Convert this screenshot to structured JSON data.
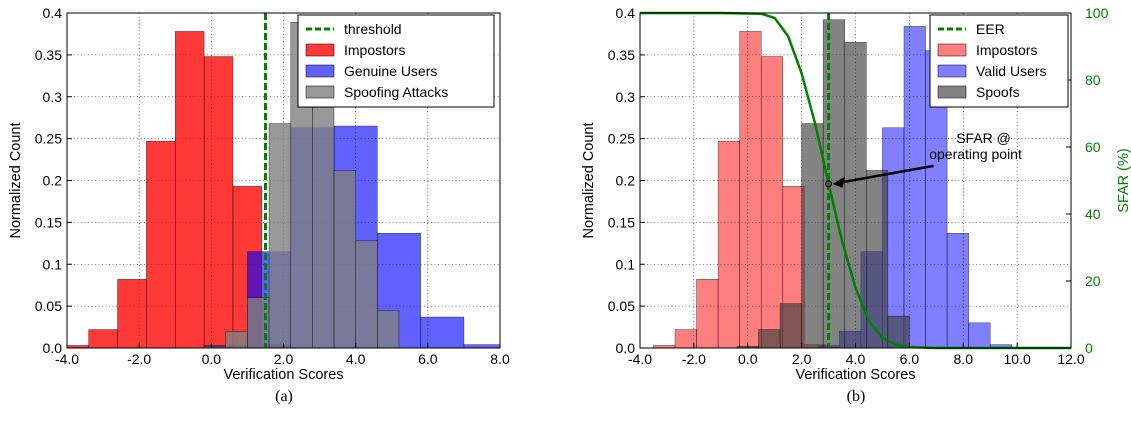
{
  "chart_data": [
    {
      "type": "bar",
      "caption": "(a)",
      "xlabel": "Verification Scores",
      "ylabel": "Normalized Count",
      "xlim": [
        -4.0,
        8.0
      ],
      "ylim": [
        0,
        0.4
      ],
      "xticks": [
        "-4.0",
        "-2.0",
        "0.0",
        "2.0",
        "4.0",
        "6.0",
        "8.0"
      ],
      "yticks": [
        "0.0",
        "0.05",
        "0.1",
        "0.15",
        "0.2",
        "0.25",
        "0.3",
        "0.35",
        "0.4"
      ],
      "grid": true,
      "legend_position": "top-right",
      "threshold": {
        "name": "threshold",
        "x": 1.5,
        "color": "#008000"
      },
      "series": [
        {
          "name": "Impostors",
          "color": "#ff0000",
          "alpha": 0.78,
          "bins": [
            [
              -4.2,
              -3.4,
              0.003
            ],
            [
              -3.4,
              -2.6,
              0.022
            ],
            [
              -2.6,
              -1.8,
              0.082
            ],
            [
              -1.8,
              -1.0,
              0.247
            ],
            [
              -1.0,
              -0.2,
              0.378
            ],
            [
              -0.2,
              0.6,
              0.348
            ],
            [
              0.6,
              1.4,
              0.193
            ],
            [
              1.4,
              2.2,
              0.004
            ]
          ]
        },
        {
          "name": "Genuine Users",
          "color": "#0000ff",
          "alpha": 0.62,
          "bins": [
            [
              -0.2,
              1.0,
              0.003
            ],
            [
              1.0,
              2.2,
              0.115
            ],
            [
              2.2,
              3.4,
              0.263
            ],
            [
              3.4,
              4.6,
              0.265
            ],
            [
              4.6,
              5.8,
              0.137
            ],
            [
              5.8,
              7.0,
              0.037
            ],
            [
              7.0,
              8.2,
              0.004
            ]
          ]
        },
        {
          "name": "Spoofing Attacks",
          "color": "#808080",
          "alpha": 0.8,
          "bins": [
            [
              -0.2,
              0.4,
              0.002
            ],
            [
              0.4,
              1.0,
              0.02
            ],
            [
              1.0,
              1.6,
              0.06
            ],
            [
              1.6,
              2.2,
              0.268
            ],
            [
              2.2,
              2.8,
              0.389
            ],
            [
              2.8,
              3.4,
              0.363
            ],
            [
              3.4,
              4.0,
              0.212
            ],
            [
              4.0,
              4.6,
              0.128
            ],
            [
              4.6,
              5.2,
              0.045
            ]
          ]
        }
      ]
    },
    {
      "type": "bar",
      "caption": "(b)",
      "xlabel": "Verification Scores",
      "ylabel": "Normalized Count",
      "y2label": "SFAR (%)",
      "xlim": [
        -4.0,
        12.0
      ],
      "ylim": [
        0,
        0.4
      ],
      "y2lim": [
        0,
        100
      ],
      "xticks": [
        "-4.0",
        "-2.0",
        "0.0",
        "2.0",
        "4.0",
        "6.0",
        "8.0",
        "10.0",
        "12.0"
      ],
      "yticks": [
        "0.0",
        "0.05",
        "0.1",
        "0.15",
        "0.2",
        "0.25",
        "0.3",
        "0.35",
        "0.4"
      ],
      "y2ticks": [
        "0",
        "20",
        "40",
        "60",
        "80",
        "100"
      ],
      "grid": true,
      "legend_position": "top-right",
      "threshold": {
        "name": "EER",
        "x": 3.0,
        "color": "#008000"
      },
      "annotation": {
        "text_line1": "SFAR @",
        "text_line2": "operating point",
        "x": 3.0,
        "y2": 49
      },
      "series": [
        {
          "name": "Impostors",
          "color": "#ff0000",
          "alpha": 0.5,
          "bins": [
            [
              -3.5,
              -2.7,
              0.003
            ],
            [
              -2.7,
              -1.9,
              0.022
            ],
            [
              -1.9,
              -1.1,
              0.082
            ],
            [
              -1.1,
              -0.3,
              0.247
            ],
            [
              -0.3,
              0.5,
              0.378
            ],
            [
              0.5,
              1.3,
              0.348
            ],
            [
              1.3,
              2.1,
              0.193
            ],
            [
              2.1,
              2.9,
              0.004
            ]
          ]
        },
        {
          "name": "Valid Users",
          "color": "#0000ff",
          "alpha": 0.5,
          "bins": [
            [
              2.6,
              3.4,
              0.003
            ],
            [
              3.4,
              4.2,
              0.02
            ],
            [
              4.2,
              5.0,
              0.115
            ],
            [
              5.0,
              5.8,
              0.263
            ],
            [
              5.8,
              6.6,
              0.384
            ],
            [
              6.6,
              7.4,
              0.355
            ],
            [
              7.4,
              8.2,
              0.137
            ],
            [
              8.2,
              9.0,
              0.03
            ],
            [
              9.0,
              9.8,
              0.004
            ]
          ]
        },
        {
          "name": "Spoofs",
          "color": "#404040",
          "alpha": 0.65,
          "bins": [
            [
              -0.4,
              0.4,
              0.002
            ],
            [
              0.4,
              1.2,
              0.022
            ],
            [
              1.2,
              2.0,
              0.053
            ],
            [
              2.0,
              2.8,
              0.268
            ],
            [
              2.8,
              3.6,
              0.392
            ],
            [
              3.6,
              4.4,
              0.365
            ],
            [
              4.4,
              5.2,
              0.212
            ],
            [
              5.2,
              6.0,
              0.038
            ]
          ]
        }
      ],
      "sfar_curve": {
        "name": "SFAR",
        "color": "#008000",
        "points": [
          [
            -4,
            100
          ],
          [
            -1,
            100
          ],
          [
            0.5,
            99.8
          ],
          [
            1.0,
            98.5
          ],
          [
            1.5,
            93
          ],
          [
            2.0,
            82
          ],
          [
            2.5,
            67
          ],
          [
            3.0,
            49
          ],
          [
            3.5,
            32
          ],
          [
            4.0,
            18
          ],
          [
            4.5,
            8
          ],
          [
            5.0,
            3
          ],
          [
            5.5,
            1
          ],
          [
            6.0,
            0.3
          ],
          [
            7.0,
            0
          ],
          [
            12.0,
            0
          ]
        ]
      }
    }
  ]
}
